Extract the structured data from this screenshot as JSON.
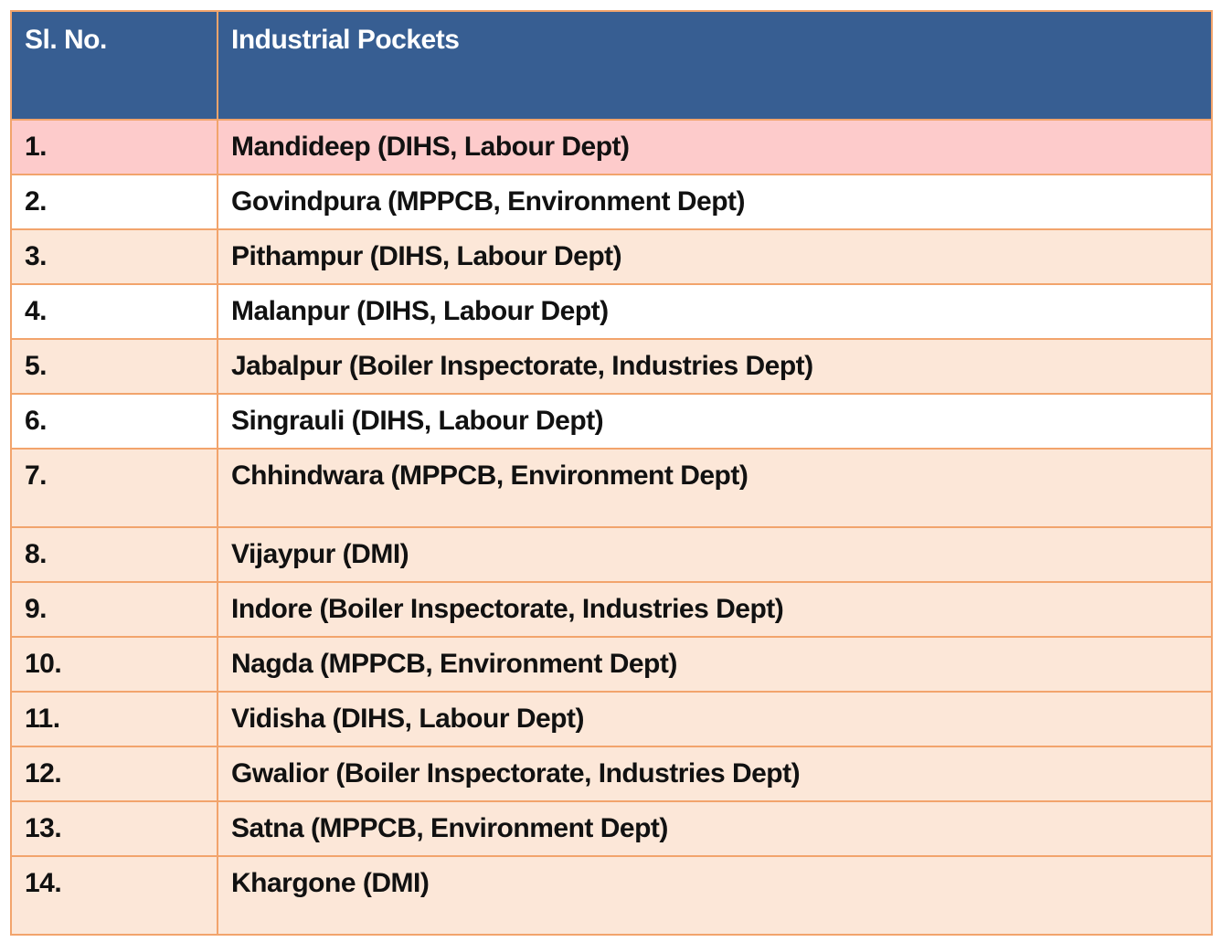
{
  "table": {
    "headers": [
      "Sl. No.",
      "Industrial Pockets"
    ],
    "rows": [
      {
        "no": "1.",
        "pocket": "Mandideep  (DIHS, Labour Dept)",
        "bg": "#fdcbcb"
      },
      {
        "no": "2.",
        "pocket": "Govindpura (MPPCB, Environment Dept)",
        "bg": "#ffffff"
      },
      {
        "no": "3.",
        "pocket": "Pithampur (DIHS, Labour Dept)",
        "bg": "#fce7d8"
      },
      {
        "no": "4.",
        "pocket": "Malanpur (DIHS, Labour Dept)",
        "bg": "#ffffff"
      },
      {
        "no": "5.",
        "pocket": "Jabalpur (Boiler Inspectorate, Industries Dept)",
        "bg": "#fce7d8"
      },
      {
        "no": "6.",
        "pocket": "Singrauli (DIHS, Labour Dept)",
        "bg": "#ffffff"
      },
      {
        "no": "7.",
        "pocket": "Chhindwara (MPPCB, Environment Dept)",
        "bg": "#fce7d8"
      },
      {
        "no": "8.",
        "pocket": "Vijaypur (DMI)",
        "bg": "#fce7d8"
      },
      {
        "no": "9.",
        "pocket": "Indore (Boiler Inspectorate, Industries Dept)",
        "bg": "#fce7d8"
      },
      {
        "no": "10.",
        "pocket": "Nagda (MPPCB, Environment Dept)",
        "bg": "#fce7d8"
      },
      {
        "no": "11.",
        "pocket": "Vidisha (DIHS, Labour Dept)",
        "bg": "#fce7d8"
      },
      {
        "no": "12.",
        "pocket": "Gwalior  (Boiler Inspectorate, Industries Dept)",
        "bg": "#fce7d8"
      },
      {
        "no": "13.",
        "pocket": "Satna  (MPPCB, Environment Dept)",
        "bg": "#fce7d8"
      },
      {
        "no": "14.",
        "pocket": "Khargone (DMI)",
        "bg": "#fce7d8"
      }
    ]
  },
  "colors": {
    "header_bg": "#375e92",
    "header_text": "#ffffff",
    "border": "#f2a46c",
    "highlight_row": "#fdcbcb",
    "alt_row": "#fce7d8"
  }
}
